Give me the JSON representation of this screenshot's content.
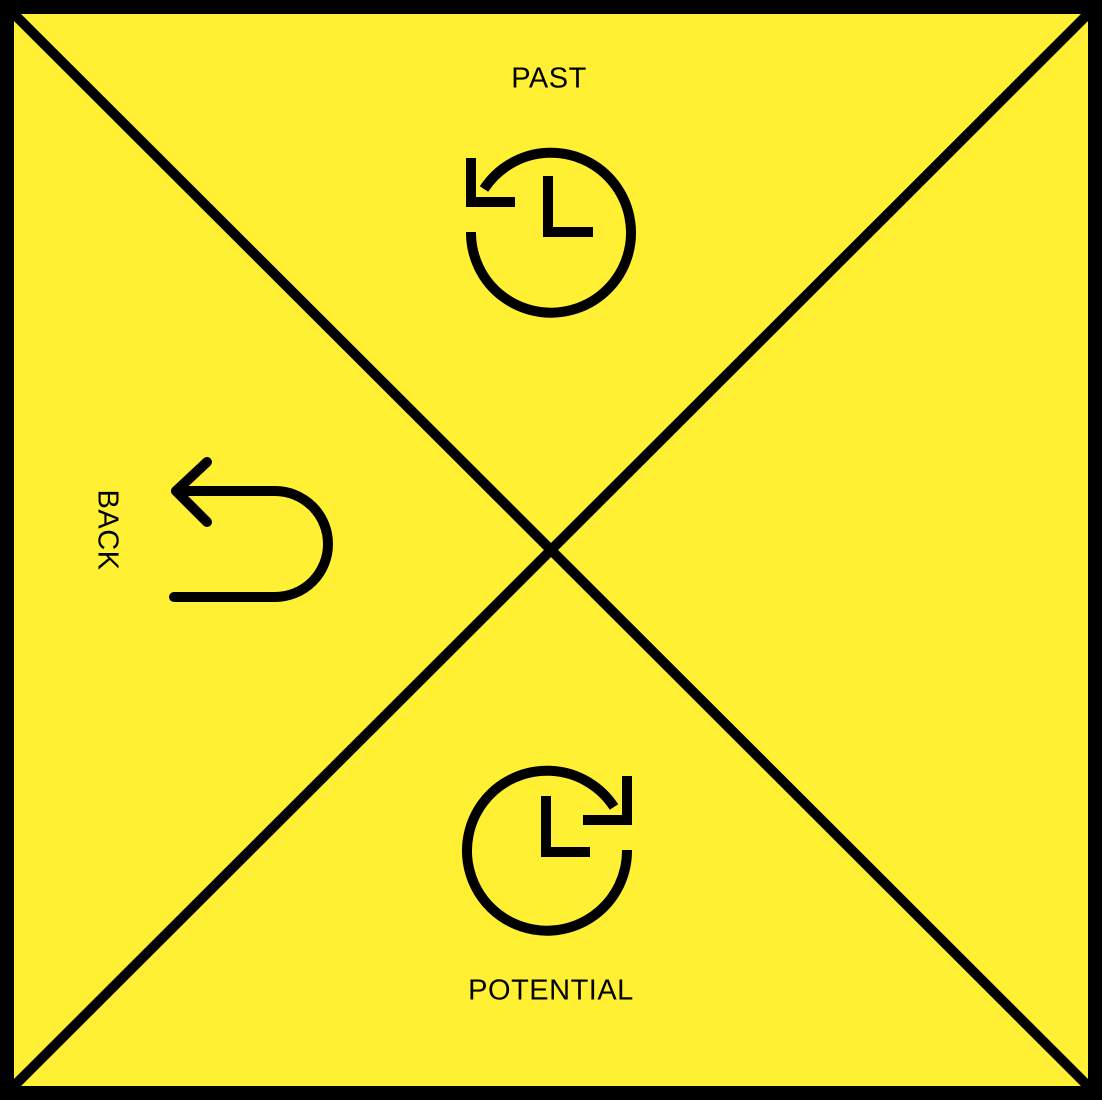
{
  "diagram": {
    "background_color": "#FFF033",
    "line_color": "#000000",
    "quadrants": {
      "top": {
        "label": "PAST",
        "icon": "history-clock-icon"
      },
      "left": {
        "label": "BACK",
        "icon": "u-turn-back-arrow-icon"
      },
      "bottom": {
        "label": "POTENTIAL",
        "icon": "future-clock-icon"
      },
      "right": {
        "label": "",
        "icon": ""
      }
    }
  }
}
